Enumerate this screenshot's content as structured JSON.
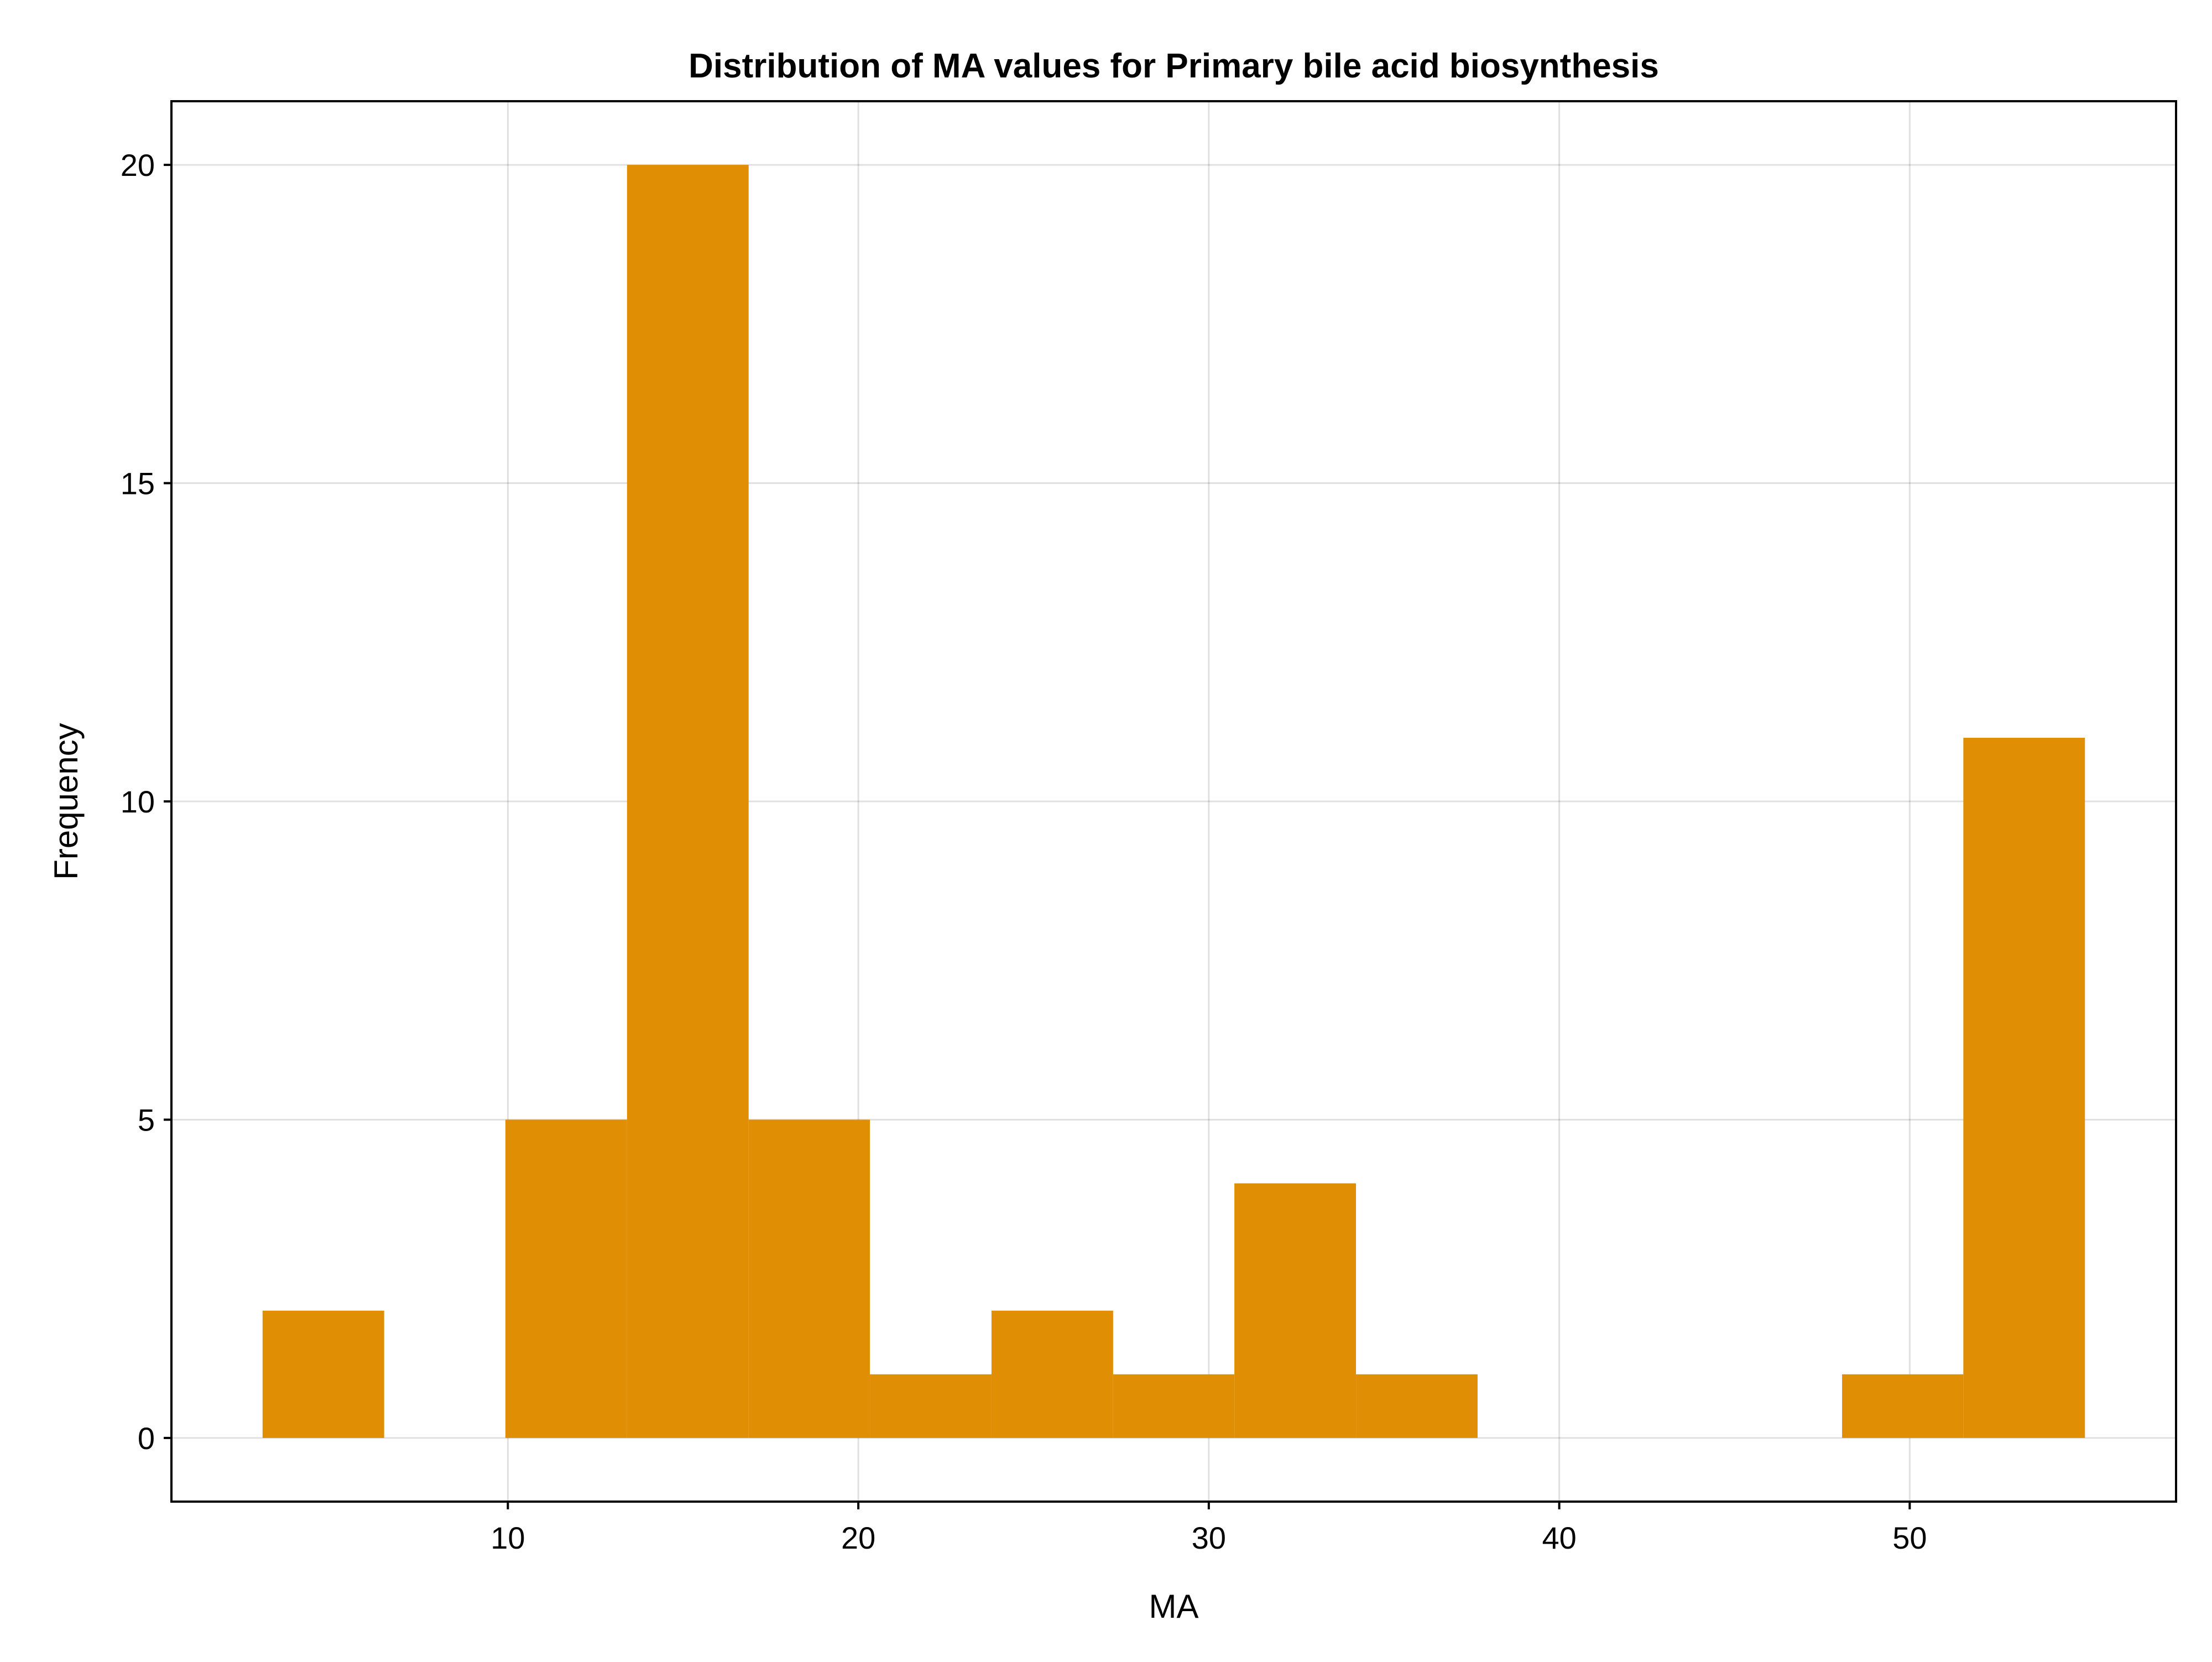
{
  "chart_data": {
    "type": "bar",
    "title": "Distribution of MA values for Primary bile acid biosynthesis",
    "xlabel": "MA",
    "ylabel": "Frequency",
    "xlim": [
      0.4,
      57.6
    ],
    "ylim": [
      -1,
      21
    ],
    "xticks": [
      10,
      20,
      30,
      40,
      50
    ],
    "yticks": [
      0,
      5,
      10,
      15,
      20
    ],
    "grid": true,
    "color": "#E08F05",
    "bin_edges": [
      3.0,
      6.47,
      9.93,
      13.4,
      16.87,
      20.33,
      23.8,
      27.27,
      30.73,
      34.2,
      37.67,
      41.13,
      44.6,
      48.07,
      51.53,
      55.0
    ],
    "counts": [
      2,
      0,
      5,
      20,
      5,
      1,
      2,
      1,
      4,
      1,
      0,
      0,
      0,
      1,
      11
    ]
  }
}
